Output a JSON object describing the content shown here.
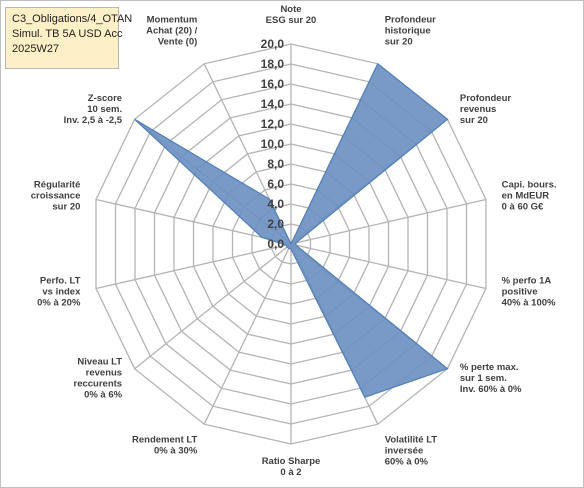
{
  "title_box": {
    "line1": "C3_Obligations/4_OTAN",
    "line2": "Simul. TB 5A USD Acc",
    "line3": "2025W27"
  },
  "chart_data": {
    "type": "radar",
    "title": "",
    "rlim": [
      0,
      20
    ],
    "rticks": [
      0.0,
      2.0,
      4.0,
      6.0,
      8.0,
      10.0,
      12.0,
      14.0,
      16.0,
      18.0,
      20.0
    ],
    "tick_labels": [
      "0,0",
      "2,0",
      "4,0",
      "6,0",
      "8,0",
      "10,0",
      "12,0",
      "14,0",
      "16,0",
      "18,0",
      "20,0"
    ],
    "grid": true,
    "axes": [
      {
        "label": [
          "Note",
          "ESG sur 20"
        ],
        "value": 0
      },
      {
        "label": [
          "Profondeur",
          "historique",
          "sur 20"
        ],
        "value": 20
      },
      {
        "label": [
          "Profondeur",
          "revenus",
          "sur 20"
        ],
        "value": 20
      },
      {
        "label": [
          "Capi. bours.",
          "en MdEUR",
          "0 à 60 G€"
        ],
        "value": 0.5
      },
      {
        "label": [
          "% perfo 1A",
          "positive",
          "40% à 100%"
        ],
        "value": 0.5
      },
      {
        "label": [
          "% perte max.",
          "sur 1 sem.",
          "Inv. 60% à 0%"
        ],
        "value": 20
      },
      {
        "label": [
          "Volatilité LT",
          "inversée",
          "60% à 0%"
        ],
        "value": 17
      },
      {
        "label": [
          "Ratio Sharpe",
          "0 à 2"
        ],
        "value": 0.5
      },
      {
        "label": [
          "Rendement LT",
          "0% à 30%"
        ],
        "value": 0.5
      },
      {
        "label": [
          "Niveau LT",
          "revenus",
          "reccurents",
          "0% à 6%"
        ],
        "value": 0.5
      },
      {
        "label": [
          "Perfo. LT",
          "vs index",
          "0% à 20%"
        ],
        "value": 0.5
      },
      {
        "label": [
          "Régularité",
          "croissance",
          "sur 20"
        ],
        "value": 3
      },
      {
        "label": [
          "Z-score",
          "10 sem.",
          "Inv. 2,5 à -2,5"
        ],
        "value": 20
      },
      {
        "label": [
          "Momentum",
          "Achat (20) /",
          "Vente (0)"
        ],
        "value": 5
      }
    ],
    "series": [
      {
        "color": "#4f7fb8",
        "fill": "#6a8fc0",
        "fill_opacity": 0.9
      }
    ],
    "grid_color": "#b4b4b4"
  }
}
